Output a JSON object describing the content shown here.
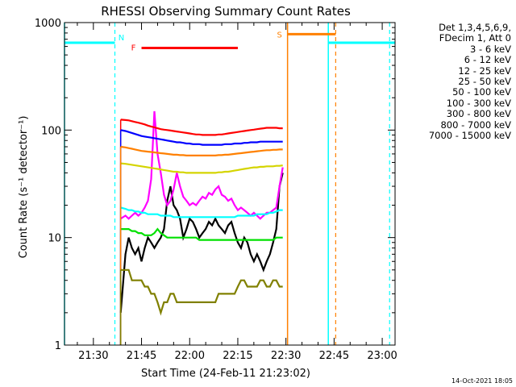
{
  "chart_data": {
    "type": "line",
    "title": "RHESSI Observing Summary Count Rates",
    "xlabel": "Start Time (24-Feb-11 21:23:02)",
    "ylabel": "Count Rate (s⁻¹ detector⁻¹)",
    "yscale": "log",
    "ylim": [
      1,
      1000
    ],
    "xlim_minutes": [
      -2,
      101
    ],
    "x_ticks": [
      {
        "minute": 7,
        "label": "21:30"
      },
      {
        "minute": 22,
        "label": "21:45"
      },
      {
        "minute": 37,
        "label": "22:00"
      },
      {
        "minute": 52,
        "label": "22:15"
      },
      {
        "minute": 67,
        "label": "22:30"
      },
      {
        "minute": 82,
        "label": "22:45"
      },
      {
        "minute": 97,
        "label": "23:00"
      }
    ],
    "y_ticks": [
      {
        "value": 1,
        "label": "1"
      },
      {
        "value": 10,
        "label": "10"
      },
      {
        "value": 100,
        "label": "100"
      },
      {
        "value": 1000,
        "label": "1000"
      }
    ],
    "legend_header": [
      "Det 1,3,4,5,6,9,",
      "FDecim 1, Att 0"
    ],
    "series": [
      {
        "name": "3 - 6 keV",
        "color": "#000000",
        "x": [
          15.5,
          17,
          18,
          19,
          20,
          21,
          22,
          23,
          24,
          25,
          26,
          27,
          28,
          29,
          30,
          31,
          32,
          33,
          34,
          35,
          36,
          37,
          38,
          39,
          40,
          41,
          42,
          43,
          44,
          45,
          46,
          47,
          48,
          49,
          50,
          51,
          52,
          53,
          54,
          55,
          56,
          57,
          58,
          59,
          60,
          61,
          62,
          63,
          64,
          65,
          66
        ],
        "y": [
          2,
          7,
          10,
          8,
          7,
          8,
          6,
          8,
          10,
          9,
          8,
          9,
          10,
          12,
          22,
          30,
          20,
          18,
          15,
          10,
          12,
          15,
          14,
          12,
          10,
          11,
          12,
          14,
          13,
          15,
          13,
          12,
          11,
          13,
          14,
          11,
          9,
          8,
          10,
          9,
          7,
          6,
          7,
          6,
          5,
          6,
          7,
          9,
          12,
          30,
          40
        ]
      },
      {
        "name": "6 - 12 keV",
        "color": "#ff00ff",
        "x": [
          15.5,
          17,
          18,
          19,
          20,
          21,
          22,
          23,
          24,
          25,
          26,
          27,
          28,
          29,
          30,
          31,
          32,
          33,
          34,
          35,
          36,
          37,
          38,
          39,
          40,
          41,
          42,
          43,
          44,
          45,
          46,
          47,
          48,
          49,
          50,
          51,
          52,
          53,
          54,
          55,
          56,
          57,
          58,
          59,
          60,
          61,
          62,
          63,
          64,
          65,
          66
        ],
        "y": [
          15,
          16,
          15,
          16,
          17,
          16,
          17,
          19,
          22,
          35,
          150,
          60,
          40,
          25,
          20,
          22,
          28,
          40,
          30,
          24,
          22,
          20,
          21,
          20,
          22,
          24,
          23,
          26,
          25,
          28,
          30,
          25,
          24,
          22,
          23,
          20,
          18,
          19,
          18,
          17,
          16,
          17,
          16,
          15,
          16,
          17,
          17,
          18,
          19,
          30,
          45
        ]
      },
      {
        "name": "12 - 25 keV",
        "color": "#00e000",
        "x": [
          15.5,
          17,
          18,
          19,
          20,
          21,
          22,
          23,
          24,
          25,
          26,
          27,
          28,
          29,
          30,
          31,
          32,
          33,
          34,
          35,
          36,
          37,
          38,
          39,
          40,
          41,
          42,
          43,
          44,
          45,
          46,
          47,
          48,
          49,
          50,
          51,
          52,
          53,
          54,
          55,
          56,
          57,
          58,
          59,
          60,
          61,
          62,
          63,
          64,
          65,
          66
        ],
        "y": [
          12,
          12,
          12,
          11.5,
          11.5,
          11,
          11,
          10.5,
          10.5,
          10.5,
          11,
          12,
          11,
          10.5,
          10,
          10,
          10,
          10,
          10,
          10,
          10,
          10,
          10,
          10,
          9.5,
          9.5,
          9.5,
          9.5,
          9.5,
          9.5,
          9.5,
          9.5,
          9.5,
          9.5,
          9.5,
          9.5,
          9.5,
          9.5,
          9.5,
          9.5,
          9.5,
          9.5,
          9.5,
          9.5,
          9.5,
          9.5,
          9.5,
          9.5,
          10,
          10,
          10
        ]
      },
      {
        "name": "25 - 50 keV",
        "color": "#00ffff",
        "x": [
          15.5,
          17,
          18,
          19,
          20,
          21,
          22,
          23,
          24,
          25,
          26,
          27,
          28,
          29,
          30,
          31,
          32,
          33,
          34,
          35,
          36,
          37,
          38,
          39,
          40,
          41,
          42,
          43,
          44,
          45,
          46,
          47,
          48,
          49,
          50,
          51,
          52,
          53,
          54,
          55,
          56,
          57,
          58,
          59,
          60,
          61,
          62,
          63,
          64,
          65,
          66
        ],
        "y": [
          19,
          18.5,
          18,
          18,
          17.5,
          17.5,
          17,
          17,
          16.5,
          16.5,
          16.5,
          16.5,
          16,
          16,
          16,
          16,
          15.5,
          15.5,
          15.5,
          15.5,
          15.5,
          15.5,
          15.5,
          15.5,
          15.5,
          15.5,
          15.5,
          15.5,
          15.5,
          15.5,
          15.5,
          15.5,
          15.5,
          15.5,
          15.5,
          15.5,
          16,
          16,
          16,
          16,
          16,
          16,
          16.5,
          16.5,
          16.5,
          16.5,
          17,
          17,
          17.5,
          18,
          18
        ]
      },
      {
        "name": "50 - 100 keV",
        "color": "#d4d400",
        "x": [
          15.5,
          17,
          18,
          19,
          20,
          21,
          22,
          23,
          24,
          25,
          26,
          27,
          28,
          29,
          30,
          31,
          32,
          33,
          34,
          35,
          36,
          37,
          38,
          39,
          40,
          41,
          42,
          43,
          44,
          45,
          46,
          47,
          48,
          49,
          50,
          51,
          52,
          53,
          54,
          55,
          56,
          57,
          58,
          59,
          60,
          61,
          62,
          63,
          64,
          65,
          66
        ],
        "y": [
          49,
          48.5,
          48,
          47.5,
          47,
          46.5,
          46,
          45.5,
          45,
          44.5,
          44,
          43.5,
          43,
          42.5,
          42,
          41.5,
          41,
          41,
          40.5,
          40.5,
          40,
          40,
          40,
          40,
          40,
          40,
          40,
          40,
          40,
          40,
          40.5,
          40.5,
          41,
          41,
          41.5,
          42,
          42.5,
          43,
          43.5,
          44,
          44.5,
          45,
          45,
          45.5,
          45.5,
          46,
          46,
          46,
          46.5,
          46.5,
          47
        ]
      },
      {
        "name": "100 - 300 keV",
        "color": "#ff0000",
        "x": [
          15.5,
          17,
          18,
          19,
          20,
          21,
          22,
          23,
          24,
          25,
          26,
          27,
          28,
          29,
          30,
          31,
          32,
          33,
          34,
          35,
          36,
          37,
          38,
          39,
          40,
          41,
          42,
          43,
          44,
          45,
          46,
          47,
          48,
          49,
          50,
          51,
          52,
          53,
          54,
          55,
          56,
          57,
          58,
          59,
          60,
          61,
          62,
          63,
          64,
          65,
          66
        ],
        "y": [
          125,
          124,
          123,
          121,
          119,
          117,
          115,
          113,
          110,
          108,
          106,
          104,
          102,
          101,
          100,
          99,
          98,
          97,
          96,
          95,
          94,
          93,
          92,
          91,
          91,
          90,
          90,
          90,
          90,
          90,
          91,
          91,
          92,
          93,
          94,
          95,
          96,
          97,
          98,
          99,
          100,
          101,
          102,
          103,
          104,
          105,
          105,
          105,
          105,
          104,
          104
        ]
      },
      {
        "name": "300 - 800 keV",
        "color": "#0000ff",
        "x": [
          15.5,
          17,
          18,
          19,
          20,
          21,
          22,
          23,
          24,
          25,
          26,
          27,
          28,
          29,
          30,
          31,
          32,
          33,
          34,
          35,
          36,
          37,
          38,
          39,
          40,
          41,
          42,
          43,
          44,
          45,
          46,
          47,
          48,
          49,
          50,
          51,
          52,
          53,
          54,
          55,
          56,
          57,
          58,
          59,
          60,
          61,
          62,
          63,
          64,
          65,
          66
        ],
        "y": [
          100,
          98,
          96,
          94,
          92,
          90,
          88,
          87,
          86,
          85,
          84,
          83,
          82,
          81,
          80,
          79,
          78,
          77,
          77,
          76,
          75,
          75,
          74,
          74,
          74,
          73,
          73,
          73,
          73,
          73,
          73,
          73,
          74,
          74,
          74,
          75,
          75,
          75,
          76,
          76,
          77,
          77,
          77,
          78,
          78,
          78,
          78,
          78,
          78,
          78,
          78
        ]
      },
      {
        "name": "800 - 7000 keV",
        "color": "#ff8000",
        "x": [
          15.5,
          17,
          18,
          19,
          20,
          21,
          22,
          23,
          24,
          25,
          26,
          27,
          28,
          29,
          30,
          31,
          32,
          33,
          34,
          35,
          36,
          37,
          38,
          39,
          40,
          41,
          42,
          43,
          44,
          45,
          46,
          47,
          48,
          49,
          50,
          51,
          52,
          53,
          54,
          55,
          56,
          57,
          58,
          59,
          60,
          61,
          62,
          63,
          64,
          65,
          66
        ],
        "y": [
          70,
          69,
          68,
          67,
          66,
          65,
          64,
          63.5,
          63,
          62.5,
          62,
          61.5,
          61,
          60.5,
          60,
          59.5,
          59,
          59,
          58.5,
          58.5,
          58,
          58,
          58,
          58,
          58,
          58,
          58,
          58,
          58,
          58,
          58.5,
          58.5,
          59,
          59,
          59.5,
          60,
          60.5,
          61,
          61.5,
          62,
          62.5,
          63,
          63.5,
          64,
          64.5,
          65,
          65,
          65.5,
          65.5,
          66,
          66
        ]
      },
      {
        "name": "7000 - 15000 keV",
        "color": "#808000",
        "x": [
          15.5,
          17,
          18,
          19,
          20,
          21,
          22,
          23,
          24,
          25,
          26,
          27,
          28,
          29,
          30,
          31,
          32,
          33,
          34,
          35,
          36,
          37,
          38,
          39,
          40,
          41,
          42,
          43,
          44,
          45,
          46,
          47,
          48,
          49,
          50,
          51,
          52,
          53,
          54,
          55,
          56,
          57,
          58,
          59,
          60,
          61,
          62,
          63,
          64,
          65,
          66
        ],
        "y": [
          5,
          5,
          5,
          4,
          4,
          4,
          4,
          3.5,
          3.5,
          3,
          3,
          2.5,
          2,
          2.5,
          2.5,
          3,
          3,
          2.5,
          2.5,
          2.5,
          2.5,
          2.5,
          2.5,
          2.5,
          2.5,
          2.5,
          2.5,
          2.5,
          2.5,
          2.5,
          3,
          3,
          3,
          3,
          3,
          3,
          3.5,
          4,
          4,
          3.5,
          3.5,
          3.5,
          3.5,
          4,
          4,
          3.5,
          3.5,
          4,
          4,
          3.5,
          3.5
        ]
      }
    ],
    "annotations": [
      {
        "label": "N",
        "color": "#00ffff",
        "type": "night",
        "segments": [
          [
            -2,
            13.7
          ],
          [
            80.2,
            101
          ]
        ],
        "level": 650,
        "dashed_at": [
          13.7,
          99.3
        ]
      },
      {
        "label": "S",
        "color": "#ff8000",
        "type": "saa",
        "segments": [
          [
            67.5,
            82.5
          ]
        ],
        "level": 780,
        "dashed_at": [
          82.5
        ]
      },
      {
        "label": "F",
        "color": "#ff0000",
        "type": "flare",
        "segments": [
          [
            22,
            52
          ]
        ],
        "level": 580
      }
    ]
  },
  "timestamp": "14-Oct-2021 18:05"
}
